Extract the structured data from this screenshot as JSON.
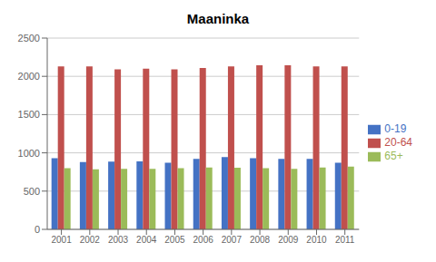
{
  "chart_data": {
    "type": "bar",
    "title": "Maaninka",
    "categories": [
      "2001",
      "2002",
      "2003",
      "2004",
      "2005",
      "2006",
      "2007",
      "2008",
      "2009",
      "2010",
      "2011"
    ],
    "series": [
      {
        "name": "0-19",
        "color": "#4472C4",
        "values": [
          930,
          880,
          885,
          890,
          870,
          920,
          945,
          930,
          920,
          920,
          870
        ]
      },
      {
        "name": "20-64",
        "color": "#C0504D",
        "values": [
          2130,
          2130,
          2090,
          2100,
          2090,
          2110,
          2130,
          2145,
          2145,
          2130,
          2130
        ]
      },
      {
        "name": "65+",
        "color": "#9BBB59",
        "values": [
          800,
          785,
          790,
          790,
          800,
          808,
          805,
          800,
          790,
          810,
          820
        ]
      }
    ],
    "ylim": [
      0,
      2500
    ],
    "yticks": [
      0,
      500,
      1000,
      1500,
      2000,
      2500
    ],
    "grid": true,
    "legend": "right"
  }
}
